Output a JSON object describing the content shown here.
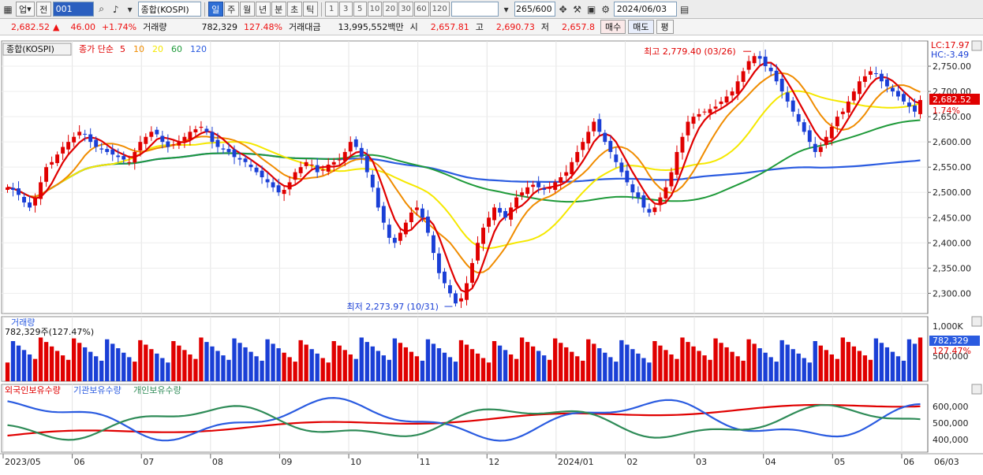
{
  "toolbar": {
    "market": "업",
    "period_mode": "전",
    "code": "001",
    "name": "종합(KOSPI)",
    "intervals": [
      "일",
      "주",
      "월",
      "년",
      "분",
      "초",
      "틱"
    ],
    "active_interval": "일",
    "numbers": [
      "1",
      "3",
      "5",
      "10",
      "20",
      "30",
      "60",
      "120"
    ],
    "count": "265/600",
    "date": "2024/06/03",
    "icons": [
      "grid-icon",
      "search-icon",
      "speaker-icon",
      "chevron-down-icon",
      "split-icon",
      "wrench-icon",
      "save-icon",
      "gear-icon",
      "calendar-icon"
    ]
  },
  "price_bar": {
    "price": "2,682.52",
    "arrow": "▲",
    "change": "46.00",
    "change_pct": "+1.74%",
    "volume_label": "거래량",
    "volume": "782,329",
    "volume_pct": "127.48%",
    "amount_label": "거래대금",
    "amount": "13,995,552백만",
    "open_label": "시",
    "open": "2,657.81",
    "high_label": "고",
    "high": "2,690.73",
    "low_label": "저",
    "low": "2,657.8",
    "buy_label": "매수",
    "sell_label": "매도",
    "extra_label": "평"
  },
  "price_panel": {
    "title": "종합(KOSPI)",
    "legend_prefix": "종가 단순",
    "ma_periods": [
      "5",
      "10",
      "20",
      "60",
      "120"
    ],
    "ma_colors": [
      "#e00000",
      "#f08c00",
      "#f5e800",
      "#1f9a3a",
      "#2a5be0"
    ],
    "lc_label": "LC:17.97",
    "hc_label": "HC:-3.49",
    "current_price_tag": "2,682.52",
    "current_pct_tag": "1.74%",
    "high_annotation": "최고 2,779.40 (03/26)",
    "low_annotation": "최저 2,273.97 (10/31)",
    "y_ticks": [
      "2,750.00",
      "2,700.00",
      "2,650.00",
      "2,600.00",
      "2,550.00",
      "2,500.00",
      "2,450.00",
      "2,400.00",
      "2,350.00",
      "2,300.00"
    ],
    "y_tick_values": [
      2750,
      2700,
      2650,
      2600,
      2550,
      2500,
      2450,
      2400,
      2350,
      2300
    ]
  },
  "volume_panel": {
    "title": "거래량",
    "value_label": "782,329주(127.47%)",
    "y_ticks": [
      "1,000K",
      "500,000"
    ],
    "current_tag": "782,329",
    "current_pct_tag": "127.47%"
  },
  "holdings_panel": {
    "series_names": [
      "외국인보유수량",
      "기관보유수량",
      "개인보유수량"
    ],
    "series_colors": [
      "#e00000",
      "#2a5be0",
      "#2e8b57"
    ],
    "y_ticks": [
      "600,000",
      "500,000",
      "400,000"
    ]
  },
  "x_axis": {
    "labels": [
      "2023/05",
      "06",
      "07",
      "08",
      "09",
      "10",
      "11",
      "12",
      "2024/01",
      "02",
      "03",
      "04",
      "05",
      "06"
    ],
    "current_date": "06/03"
  },
  "chart_data": {
    "type": "candlestick",
    "title": "종합(KOSPI)",
    "y_range": [
      2260,
      2800
    ],
    "high": {
      "value": 2779.4,
      "date": "03/26"
    },
    "low": {
      "value": 2273.97,
      "date": "10/31"
    },
    "close_series": [
      2510,
      2505,
      2495,
      2480,
      2470,
      2490,
      2520,
      2550,
      2560,
      2575,
      2590,
      2600,
      2610,
      2620,
      2615,
      2600,
      2590,
      2585,
      2580,
      2575,
      2570,
      2565,
      2560,
      2580,
      2600,
      2610,
      2620,
      2615,
      2600,
      2590,
      2595,
      2600,
      2610,
      2620,
      2625,
      2630,
      2620,
      2600,
      2590,
      2585,
      2580,
      2570,
      2565,
      2560,
      2550,
      2540,
      2530,
      2520,
      2510,
      2500,
      2505,
      2520,
      2540,
      2550,
      2560,
      2555,
      2540,
      2545,
      2555,
      2560,
      2565,
      2580,
      2600,
      2590,
      2570,
      2540,
      2510,
      2470,
      2440,
      2410,
      2400,
      2420,
      2440,
      2460,
      2470,
      2450,
      2420,
      2380,
      2340,
      2320,
      2300,
      2280,
      2290,
      2320,
      2360,
      2400,
      2430,
      2450,
      2470,
      2460,
      2450,
      2470,
      2490,
      2500,
      2510,
      2515,
      2510,
      2505,
      2510,
      2520,
      2530,
      2540,
      2560,
      2580,
      2600,
      2620,
      2640,
      2620,
      2600,
      2580,
      2560,
      2540,
      2520,
      2500,
      2490,
      2470,
      2460,
      2470,
      2490,
      2510,
      2540,
      2580,
      2610,
      2640,
      2650,
      2655,
      2660,
      2665,
      2670,
      2680,
      2690,
      2700,
      2720,
      2740,
      2760,
      2770,
      2765,
      2750,
      2740,
      2720,
      2700,
      2680,
      2660,
      2640,
      2620,
      2600,
      2580,
      2590,
      2610,
      2630,
      2650,
      2660,
      2680,
      2700,
      2720,
      2730,
      2740,
      2735,
      2720,
      2710,
      2700,
      2690,
      2680,
      2670,
      2660,
      2683
    ],
    "ma_periods": [
      5,
      10,
      20,
      60,
      120
    ],
    "volume_ticks": [
      "1,000K",
      "500,000"
    ],
    "holdings_series": [
      "외국인보유수량",
      "기관보유수량",
      "개인보유수량"
    ]
  }
}
